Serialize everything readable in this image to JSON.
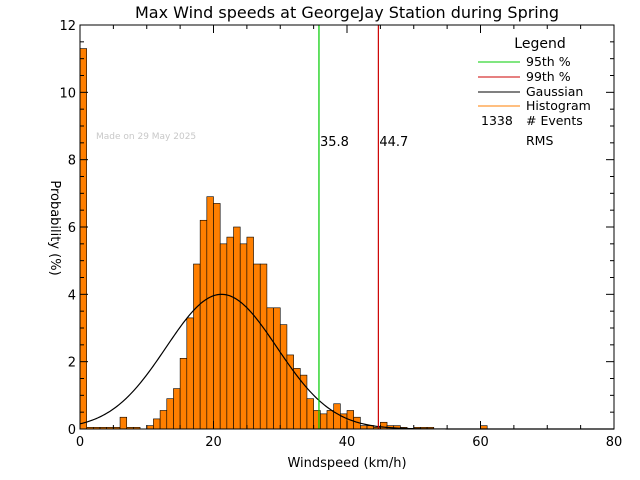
{
  "chart_data": {
    "type": "bar",
    "title": "Max Wind speeds at GeorgeJay Station during Spring",
    "xlabel": "Windspeed (km/h)",
    "ylabel": "Probability (%)",
    "xlim": [
      0,
      80
    ],
    "ylim": [
      0,
      12
    ],
    "x_ticks": [
      "0",
      "20",
      "40",
      "60",
      "80"
    ],
    "y_ticks": [
      "0",
      "2",
      "4",
      "6",
      "8",
      "10",
      "12"
    ],
    "bin_width": 1,
    "bin_start": 0,
    "values": [
      11.3,
      0.05,
      0.05,
      0.05,
      0.05,
      0.05,
      0.35,
      0.05,
      0.05,
      0,
      0.1,
      0.3,
      0.55,
      0.9,
      1.2,
      2.1,
      3.3,
      4.9,
      6.2,
      6.9,
      6.7,
      5.5,
      5.7,
      6.0,
      5.5,
      5.7,
      4.9,
      4.9,
      3.6,
      3.6,
      3.1,
      2.2,
      1.8,
      1.6,
      0.9,
      0.55,
      0.45,
      0.55,
      0.75,
      0.45,
      0.55,
      0.35,
      0.1,
      0.1,
      0.05,
      0.2,
      0.1,
      0.1,
      0.05,
      0,
      0.05,
      0.05,
      0.05,
      0,
      0,
      0,
      0,
      0,
      0,
      0,
      0.1
    ],
    "gaussian": {
      "peak": 4.0,
      "mean": 21.2,
      "sigma": 8.3
    },
    "percentile_95": {
      "value": 35.8,
      "label": "35.8",
      "color": "#00cc00"
    },
    "percentile_99": {
      "value": 44.7,
      "label": "44.7",
      "color": "#cc0000"
    },
    "histogram_color": "#ff7f00",
    "legend": {
      "title": "Legend",
      "placement": "top-right",
      "items": [
        {
          "label": "95th %",
          "color": "#00cc00"
        },
        {
          "label": "99th %",
          "color": "#cc0000"
        },
        {
          "label": "Gaussian",
          "color": "#000000"
        },
        {
          "label": "Histogram",
          "color": "#ff7f00"
        }
      ],
      "events_count": "1338",
      "events_label": "# Events",
      "rms_label": "RMS"
    },
    "stamp": "Made on 29 May 2025"
  }
}
